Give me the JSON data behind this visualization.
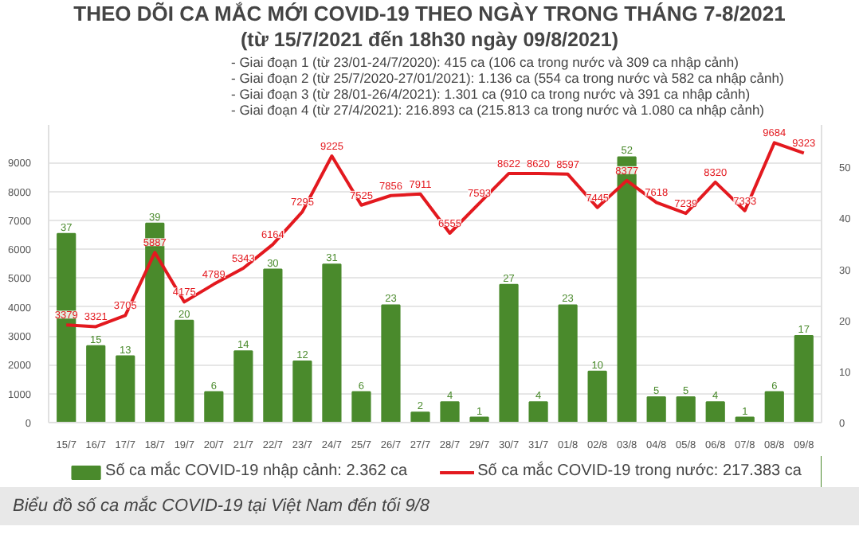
{
  "chart_data": {
    "type": "bar",
    "title": "THEO DÕI CA MẮC MỚI COVID-19 THEO NGÀY TRONG THÁNG 7-8/2021",
    "subtitle": "(từ 15/7/2021 đến 18h30 ngày 09/8/2021)",
    "annotations": [
      "- Giai đoạn 1 (từ 23/01-24/7/2020): 415 ca (106 ca trong nước và 309 ca nhập cảnh)",
      "- Giai đoạn 2 (từ 25/7/2020-27/01/2021): 1.136 ca (554 ca trong nước và 582 ca nhập cảnh)",
      "- Giai đoạn 3 (từ 28/01-26/4/2021): 1.301 ca (910 ca trong nước và 391 ca nhập cảnh)",
      "- Giai đoạn 4 (từ 27/4/2021): 216.893 ca (215.813 ca trong nước và 1.080 ca nhập cảnh)",
      "Biểu đồ số ca mắc COVID-19 tại Việt Nam đến tối 9/8"
    ],
    "categories": [
      "15/7",
      "16/7",
      "17/7",
      "18/7",
      "19/7",
      "20/7",
      "21/7",
      "22/7",
      "23/7",
      "24/7",
      "25/7",
      "26/7",
      "27/7",
      "28/7",
      "29/7",
      "30/7",
      "31/7",
      "01/8",
      "02/8",
      "03/8",
      "04/8",
      "05/8",
      "06/8",
      "07/8",
      "08/8",
      "09/8"
    ],
    "series": [
      {
        "name": "Số ca mắc COVID-19 nhập cảnh: 2.362 ca",
        "color": "#4a8a2c",
        "axis": "y2",
        "values": [
          37,
          15,
          13,
          39,
          20,
          6,
          14,
          30,
          12,
          31,
          6,
          23,
          2,
          4,
          1,
          27,
          4,
          23,
          10,
          52,
          5,
          5,
          4,
          1,
          6,
          17
        ]
      },
      {
        "name": "Số ca mắc COVID-19 trong nước: 217.383 ca",
        "color": "#e3191f",
        "type": "line",
        "axis": "y",
        "values": [
          3379,
          3321,
          3705,
          5887,
          4175,
          4789,
          5343,
          6164,
          7295,
          9225,
          7525,
          7856,
          7911,
          6555,
          7593,
          8622,
          8620,
          8597,
          7445,
          8377,
          7618,
          7239,
          8320,
          7333,
          9684,
          9323
        ]
      }
    ],
    "ylim": [
      0,
      10300
    ],
    "yticks": [
      0,
      1000,
      2000,
      3000,
      4000,
      5000,
      6000,
      7000,
      8000,
      9000
    ],
    "y2lim": [
      0,
      58.3
    ],
    "y2ticks": [
      0,
      10,
      20,
      30,
      40,
      50
    ],
    "grid": "y",
    "legend": "bottom",
    "data_labels": true
  }
}
